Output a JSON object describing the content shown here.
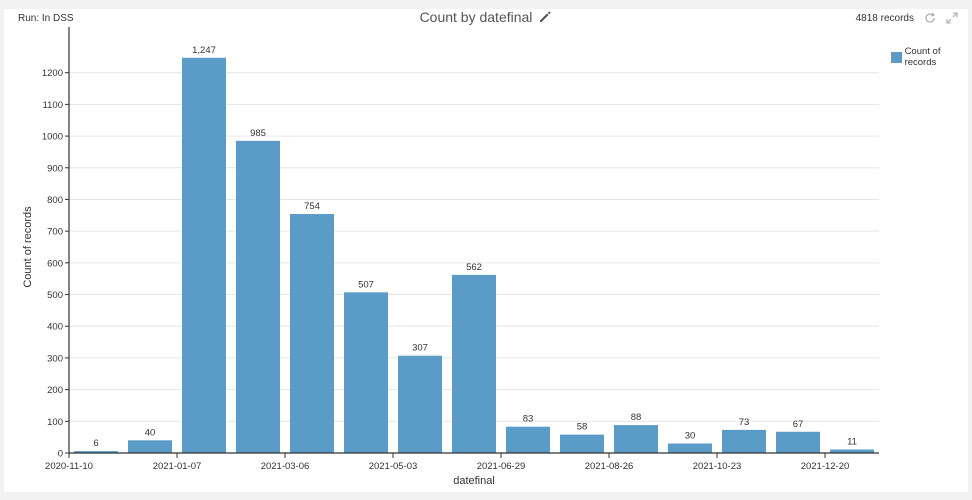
{
  "header": {
    "run_label": "Run: In DSS",
    "title": "Count by datefinal",
    "records": "4818 records",
    "pencil_icon": "pencil-icon",
    "refresh_icon": "refresh-icon",
    "expand_icon": "expand-icon"
  },
  "legend": {
    "label": "Count of records",
    "color": "#5a9bc8"
  },
  "chart_data": {
    "type": "bar",
    "title": "Count by datefinal",
    "xlabel": "datefinal",
    "ylabel": "Count of records",
    "ylim": [
      0,
      1300
    ],
    "yticks": [
      0,
      100,
      200,
      300,
      400,
      500,
      600,
      700,
      800,
      900,
      1000,
      1100,
      1200
    ],
    "xtick_labels": [
      "2020-11-10",
      "2021-01-07",
      "2021-03-06",
      "2021-05-03",
      "2021-06-29",
      "2021-08-26",
      "2021-10-23",
      "2021-12-20"
    ],
    "values": [
      6,
      40,
      1247,
      985,
      754,
      507,
      307,
      562,
      83,
      58,
      88,
      30,
      73,
      67,
      11
    ],
    "value_labels": [
      "6",
      "40",
      "1,247",
      "985",
      "754",
      "507",
      "307",
      "562",
      "83",
      "58",
      "88",
      "30",
      "73",
      "67",
      "11"
    ],
    "series": [
      {
        "name": "Count of records",
        "color": "#5a9bc8"
      }
    ],
    "grid": true,
    "legend_position": "top-right"
  }
}
